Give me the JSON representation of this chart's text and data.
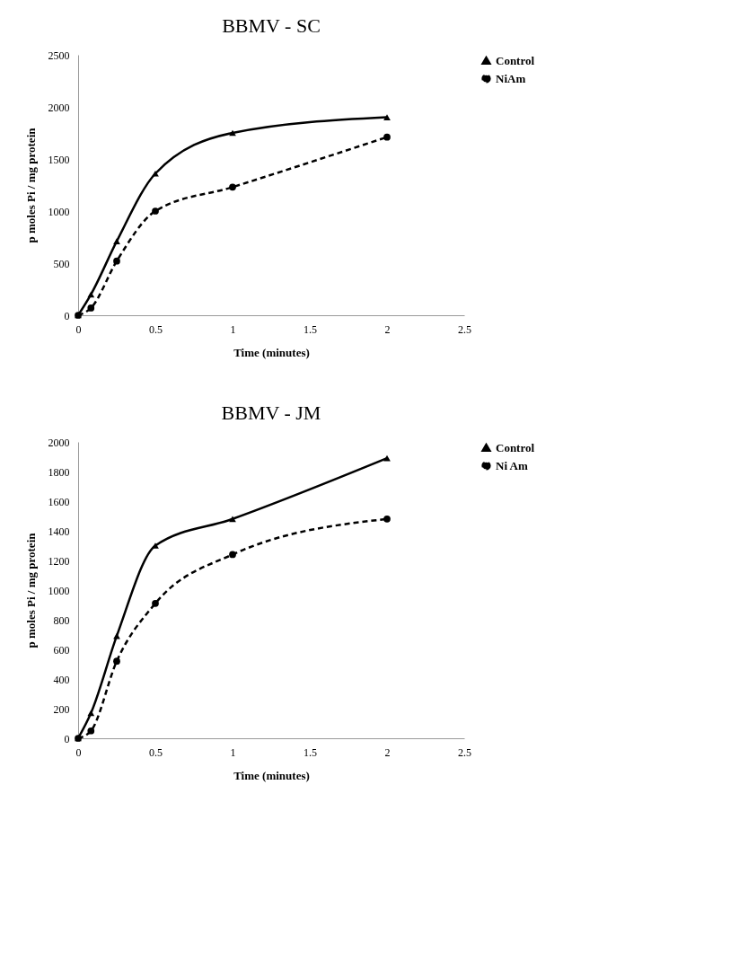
{
  "chart_data": [
    {
      "type": "line",
      "title": "BBMV - SC",
      "xlabel": "Time (minutes)",
      "ylabel": "p moles Pi / mg protein",
      "x": [
        0,
        0.083,
        0.25,
        0.5,
        1,
        2
      ],
      "xlim": [
        0,
        2.5
      ],
      "xticks": [
        0,
        0.5,
        1,
        1.5,
        2,
        2.5
      ],
      "ylim": [
        0,
        2500
      ],
      "yticks": [
        0,
        500,
        1000,
        1500,
        2000,
        2500
      ],
      "grid": false,
      "legend": "right",
      "series": [
        {
          "name": "Control",
          "color": "#000000",
          "marker": "triangle",
          "line_style": "solid",
          "values": [
            0,
            200,
            710,
            1360,
            1750,
            1900
          ]
        },
        {
          "name": "NiAm",
          "color": "#000000",
          "marker": "circle",
          "line_style": "dashed",
          "values": [
            0,
            70,
            520,
            1000,
            1230,
            1710
          ]
        }
      ]
    },
    {
      "type": "line",
      "title": "BBMV - JM",
      "xlabel": "Time (minutes)",
      "ylabel": "p moles Pi / mg protein",
      "x": [
        0,
        0.083,
        0.25,
        0.5,
        1,
        2
      ],
      "xlim": [
        0,
        2.5
      ],
      "xticks": [
        0,
        0.5,
        1,
        1.5,
        2,
        2.5
      ],
      "ylim": [
        0,
        2000
      ],
      "yticks": [
        0,
        200,
        400,
        600,
        800,
        1000,
        1200,
        1400,
        1600,
        1800,
        2000
      ],
      "grid": false,
      "legend": "right",
      "series": [
        {
          "name": "Control",
          "color": "#000000",
          "marker": "triangle",
          "line_style": "solid",
          "values": [
            0,
            170,
            690,
            1300,
            1480,
            1890
          ]
        },
        {
          "name": "Ni Am",
          "color": "#000000",
          "marker": "circle",
          "line_style": "dashed",
          "values": [
            0,
            50,
            520,
            910,
            1240,
            1480
          ]
        }
      ]
    }
  ]
}
